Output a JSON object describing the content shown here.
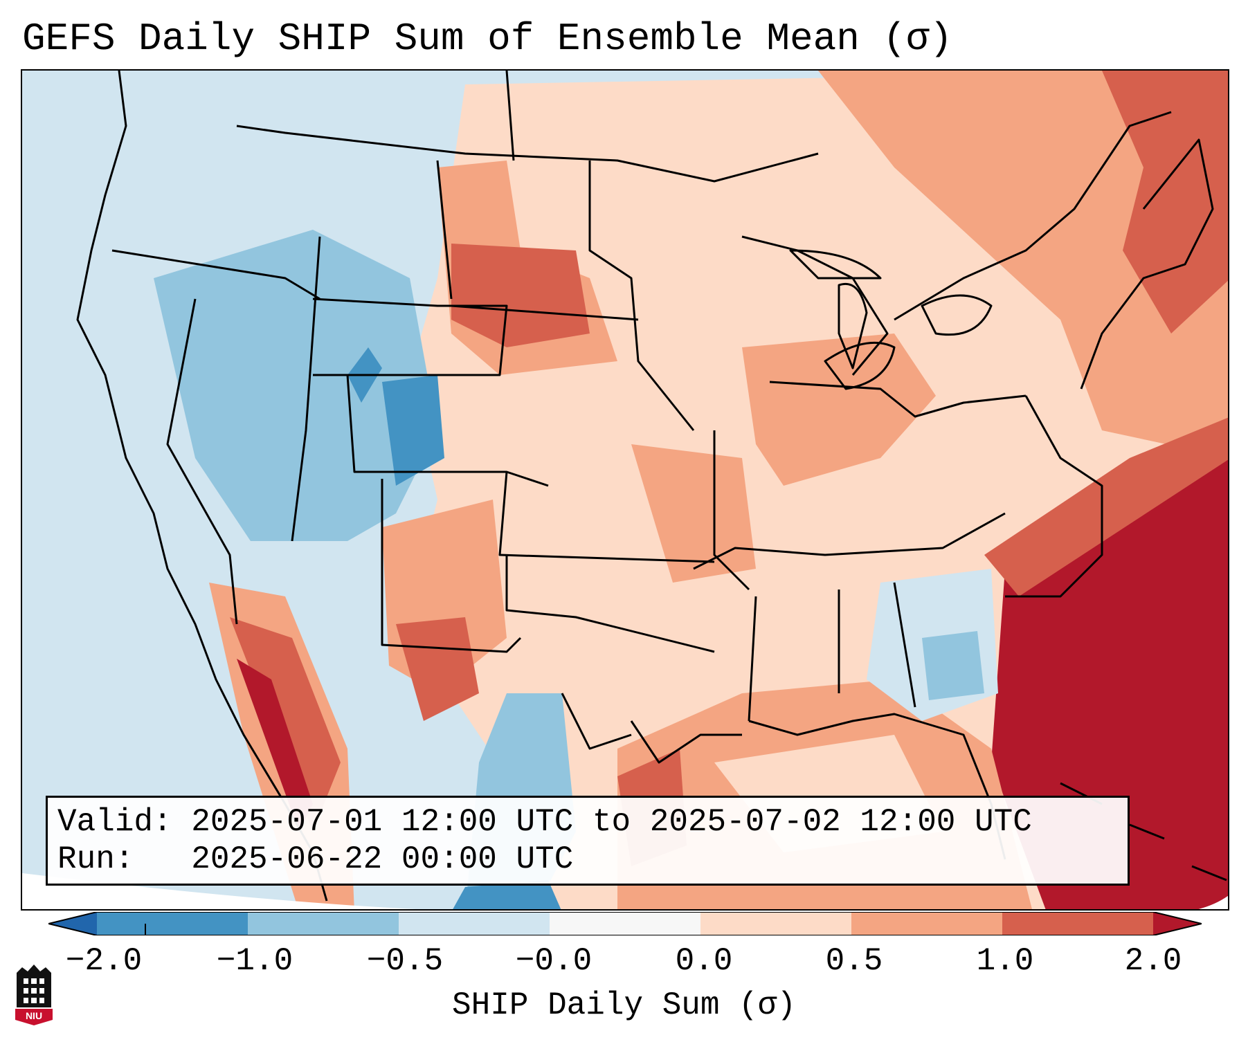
{
  "title": "GEFS Daily SHIP Sum of Ensemble Mean (σ)",
  "info": {
    "valid_line": "Valid: 2025-07-01 12:00 UTC to 2025-07-02 12:00 UTC",
    "run_line": "Run:   2025-06-22 00:00 UTC"
  },
  "colorbar": {
    "label": "SHIP Daily Sum (σ)",
    "ticks": [
      "−2.0",
      "−1.0",
      "−0.5",
      "−0.0",
      "0.0",
      "0.5",
      "1.0",
      "2.0"
    ],
    "colors": {
      "below": "#2166ac",
      "bins": [
        "#4393c3",
        "#92c5de",
        "#d1e5f0",
        "#f7f7f7",
        "#fddbc7",
        "#f4a582",
        "#d6604d"
      ],
      "above": "#b2182b"
    }
  },
  "logo": {
    "text": "NIU"
  }
}
